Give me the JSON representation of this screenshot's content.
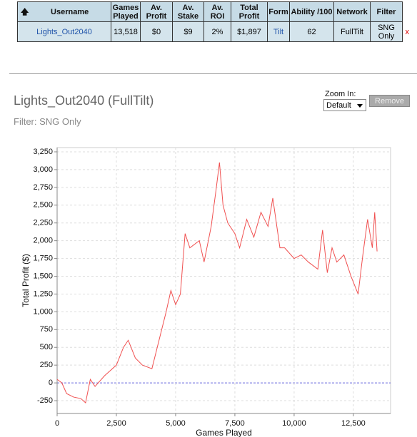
{
  "table": {
    "header": [
      "Username",
      "Games Played",
      "Av. Profit",
      "Av. Stake",
      "Av. ROI",
      "Total Profit",
      "Form",
      "Ability /100",
      "Network",
      "Filter"
    ],
    "row": [
      "Lights_Out2040",
      "13,518",
      "$0",
      "$9",
      "2%",
      "$1,897",
      "Tilt",
      "62",
      "FullTilt",
      "SNG Only"
    ],
    "remove_mark": "x"
  },
  "title": "Lights_Out2040 (FullTilt)",
  "filter": "Filter: SNG Only",
  "zoom_label": "Zoom In:",
  "zoom_value": "Default",
  "remove_button": "Remove",
  "chart_data": {
    "type": "line",
    "x_label": "Games Played",
    "y_label": "Total Profit ($)",
    "series": [
      {
        "name": "Total Profit",
        "color": "#f05050",
        "x": [
          0,
          200,
          400,
          700,
          1000,
          1200,
          1400,
          1600,
          2000,
          2500,
          2800,
          3000,
          3300,
          3600,
          4000,
          4300,
          4600,
          4800,
          5000,
          5200,
          5400,
          5600,
          6000,
          6200,
          6500,
          6700,
          6850,
          7000,
          7200,
          7500,
          7700,
          8000,
          8300,
          8600,
          8900,
          9100,
          9400,
          9600,
          10000,
          10300,
          10600,
          11000,
          11200,
          11400,
          11600,
          11800,
          12100,
          12400,
          12700,
          12900,
          13100,
          13300,
          13400,
          13500
        ],
        "values": [
          50,
          0,
          -150,
          -200,
          -220,
          -280,
          50,
          -50,
          100,
          250,
          500,
          600,
          350,
          250,
          200,
          600,
          1000,
          1300,
          1100,
          1250,
          2100,
          1900,
          2000,
          1700,
          2200,
          2700,
          3100,
          2500,
          2250,
          2100,
          1900,
          2300,
          2050,
          2400,
          2200,
          2600,
          1900,
          1900,
          1750,
          1800,
          1700,
          1600,
          2150,
          1550,
          1900,
          1700,
          1800,
          1500,
          1250,
          1800,
          2300,
          1900,
          2400,
          1850
        ]
      }
    ],
    "xlim": [
      0,
      14070
    ],
    "ylim": [
      -430,
      3310
    ],
    "xticks": [
      0,
      {
        "value": 2500,
        "label": "2,500"
      },
      {
        "value": 5000,
        "label": "5,000"
      },
      {
        "value": 7500,
        "label": "7,500"
      },
      {
        "value": 10000,
        "label": "10,000"
      },
      {
        "value": 12500,
        "label": "12,500"
      }
    ],
    "yticks": [
      -250,
      0,
      250,
      500,
      750,
      {
        "value": 1000,
        "label": "1,000"
      },
      {
        "value": 1250,
        "label": "1,250"
      },
      {
        "value": 1500,
        "label": "1,500"
      },
      {
        "value": 1750,
        "label": "1,750"
      },
      {
        "value": 2000,
        "label": "2,000"
      },
      {
        "value": 2250,
        "label": "2,250"
      },
      {
        "value": 2500,
        "label": "2,500"
      },
      {
        "value": 2750,
        "label": "2,750"
      },
      {
        "value": 3000,
        "label": "3,000"
      },
      {
        "value": 3250,
        "label": "3,250"
      }
    ],
    "grid": true
  }
}
